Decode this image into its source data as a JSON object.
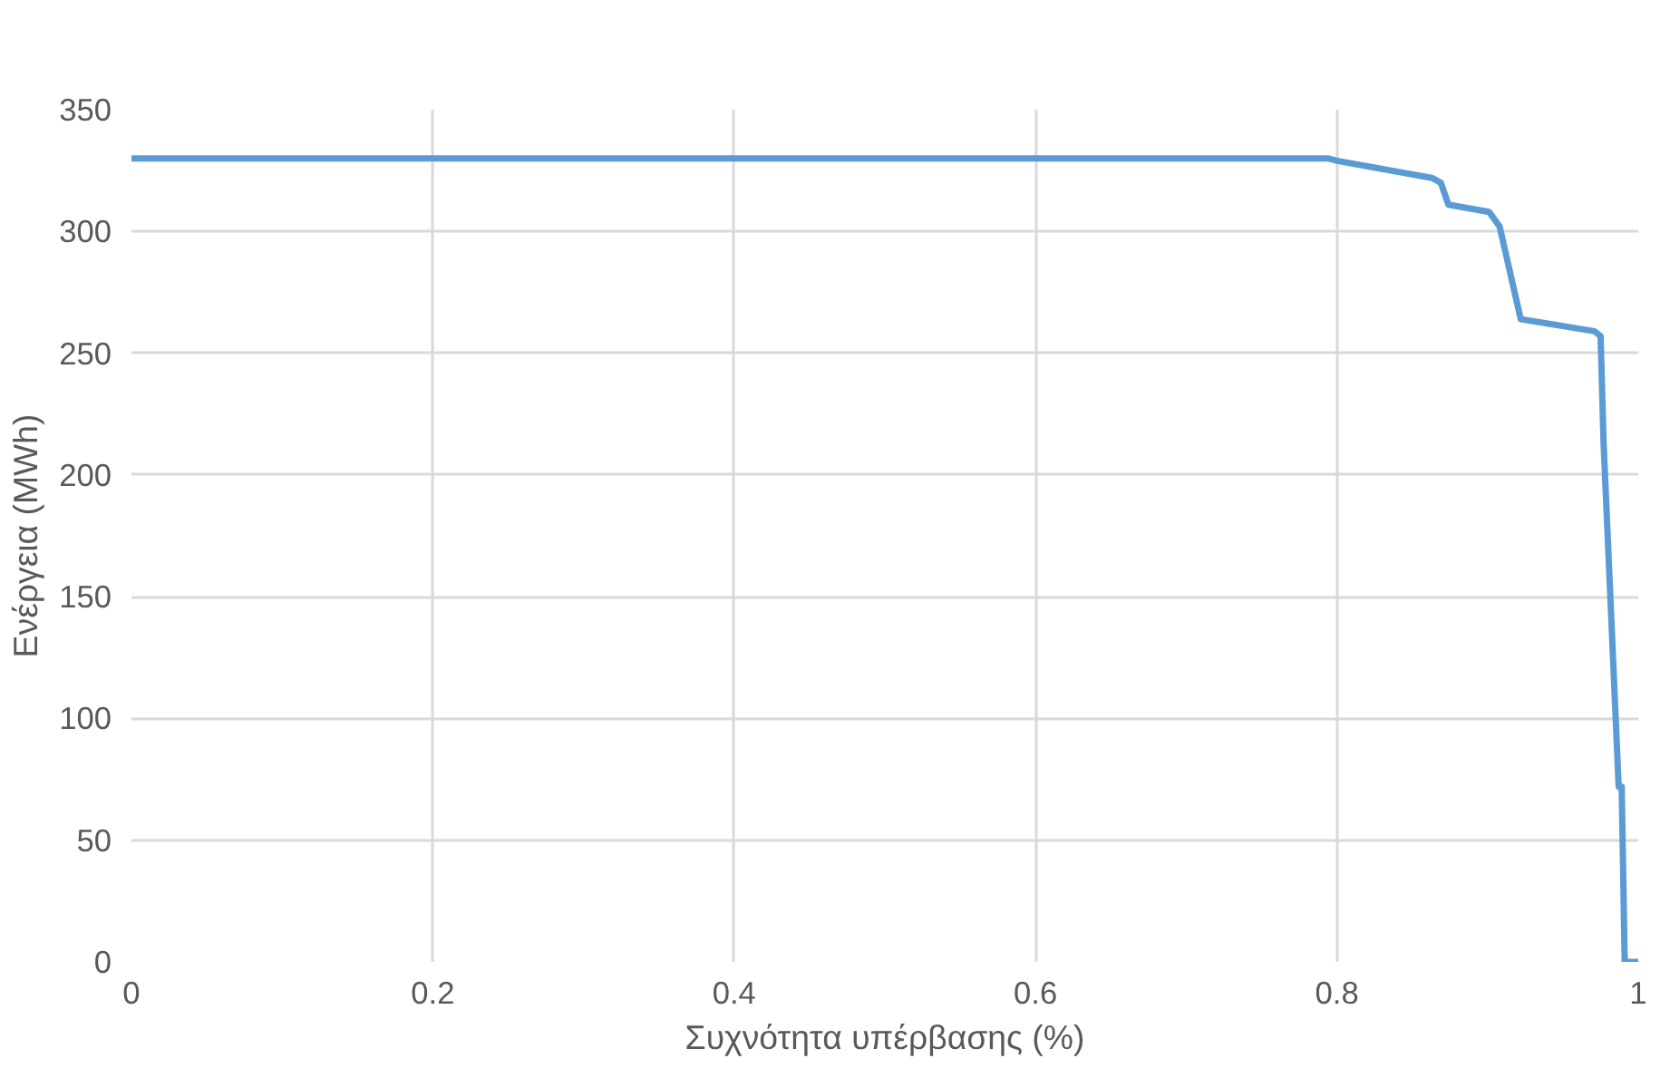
{
  "chart_data": {
    "type": "line",
    "xlabel": "Συχνότητα υπέρβασης (%)",
    "ylabel": "Ενέργεια (MWh)",
    "x": [
      0,
      0.794,
      0.8,
      0.863,
      0.869,
      0.874,
      0.901,
      0.908,
      0.915,
      0.922,
      0.971,
      0.975,
      0.977,
      0.987,
      0.989,
      0.991,
      1.0
    ],
    "series": [
      {
        "color": "#5b9bd5",
        "values": [
          330,
          330,
          329,
          322,
          320,
          311,
          308,
          302,
          283,
          264,
          259,
          257,
          213,
          72,
          72,
          0,
          0
        ]
      }
    ],
    "xlim": [
      0,
      1
    ],
    "xticks": [
      0,
      0.2,
      0.4,
      0.6,
      0.8,
      1
    ],
    "ylim": [
      0,
      350
    ],
    "yticks": [
      0,
      50,
      100,
      150,
      200,
      250,
      300,
      350
    ],
    "grid": true,
    "marker": "none",
    "line_style": "solid"
  }
}
